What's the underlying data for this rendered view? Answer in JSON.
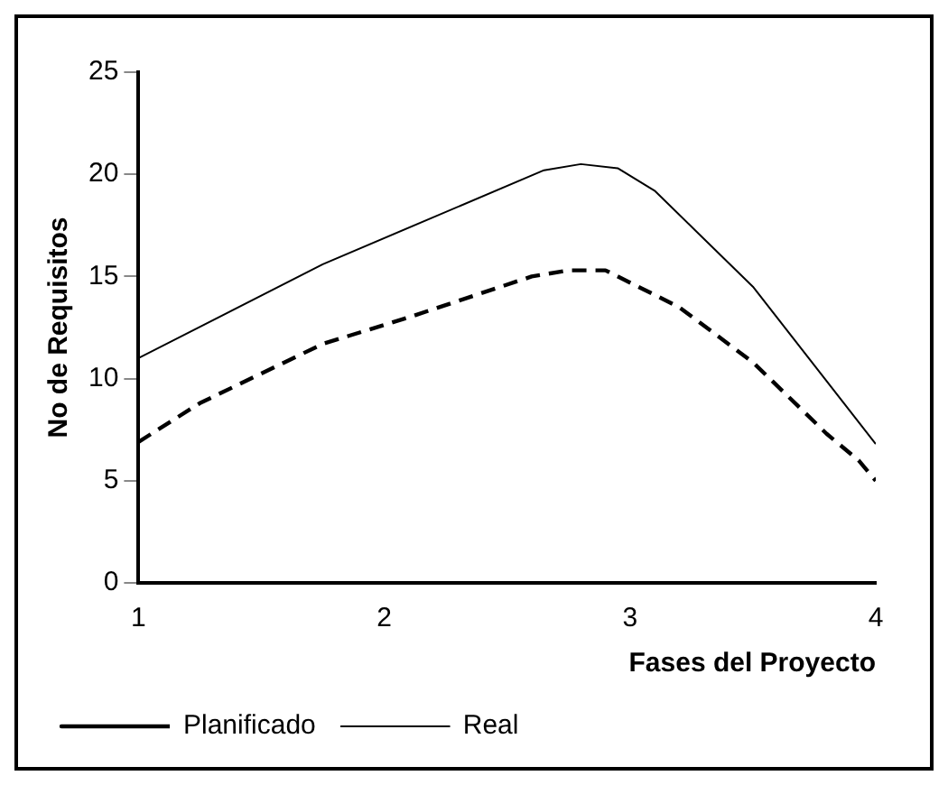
{
  "chart_data": {
    "type": "line",
    "xlabel": "Fases del Proyecto",
    "ylabel": "No de Requisitos",
    "xlim": [
      1,
      4
    ],
    "xticks": [
      1,
      2,
      3,
      4
    ],
    "ylim": [
      0,
      25
    ],
    "yticks": [
      0,
      5,
      10,
      15,
      20,
      25
    ],
    "grid": false,
    "legend": "bottom left",
    "marker": "none",
    "series": [
      {
        "name": "Planificado",
        "color": "#000000",
        "line_style": "dashed",
        "x": [
          1,
          1.25,
          1.75,
          2.1,
          2.6,
          2.75,
          2.9,
          3.2,
          3.5,
          3.8,
          3.93,
          4
        ],
        "values": [
          6.9,
          8.8,
          11.7,
          13,
          15,
          15.3,
          15.3,
          13.5,
          10.8,
          7.3,
          6,
          5
        ]
      },
      {
        "name": "Real",
        "color": "#000000",
        "line_style": "solid",
        "x": [
          1,
          1.75,
          2.65,
          2.8,
          2.95,
          3.1,
          3.5,
          4
        ],
        "values": [
          11,
          15.6,
          20.2,
          20.5,
          20.3,
          19.2,
          14.5,
          6.8
        ]
      }
    ]
  }
}
